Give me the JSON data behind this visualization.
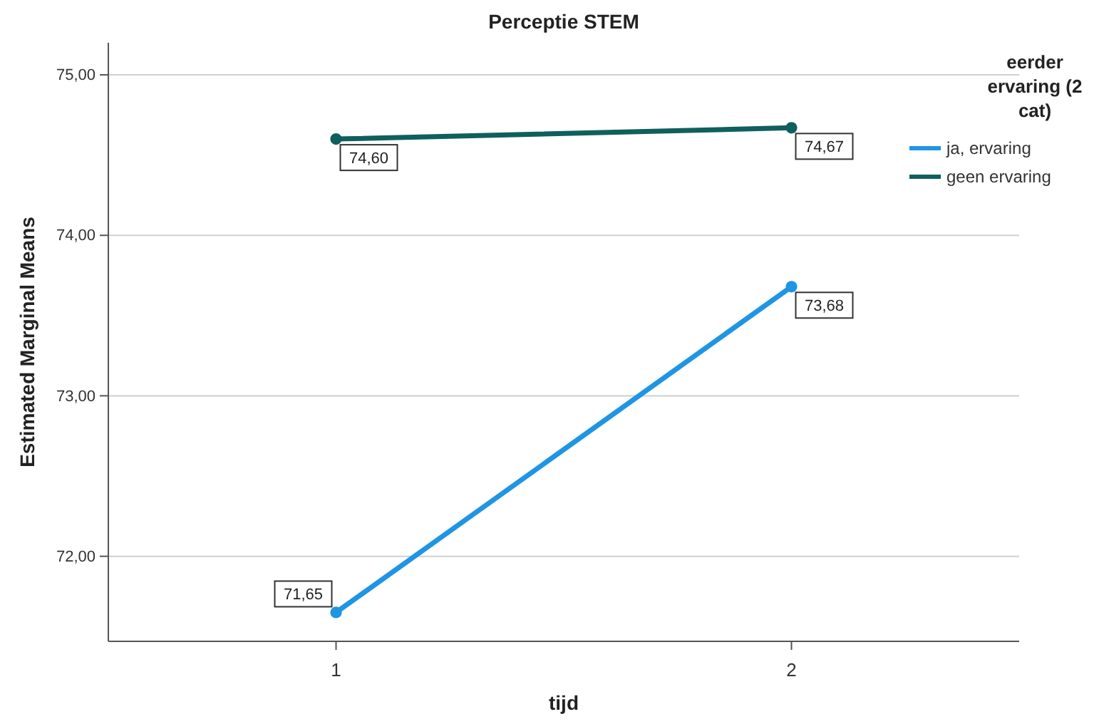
{
  "chart_data": {
    "type": "line",
    "title": "Perceptie STEM",
    "xlabel": "tijd",
    "ylabel": "Estimated Marginal Means",
    "legend_title": "eerder ervaring (2 cat)",
    "x": [
      1,
      2
    ],
    "xlim": [
      0.5,
      2.5
    ],
    "xticks": [
      1,
      2
    ],
    "series": [
      {
        "name": "ja, ervaring",
        "color": "#1f95e3",
        "values": [
          71.65,
          73.68
        ],
        "value_labels": [
          "71,65",
          "73,68"
        ]
      },
      {
        "name": "geen ervaring",
        "color": "#0f5f5d",
        "values": [
          74.6,
          74.67
        ],
        "value_labels": [
          "74,60",
          "74,67"
        ]
      }
    ],
    "ylim": [
      71.47,
      75.2
    ],
    "yticks": [
      {
        "value": 72,
        "label": "72,00"
      },
      {
        "value": 73,
        "label": "73,00"
      },
      {
        "value": 74,
        "label": "74,00"
      },
      {
        "value": 75,
        "label": "75,00"
      }
    ],
    "grid": "y",
    "legend": "right",
    "marker": "circle",
    "line_style": "solid"
  }
}
